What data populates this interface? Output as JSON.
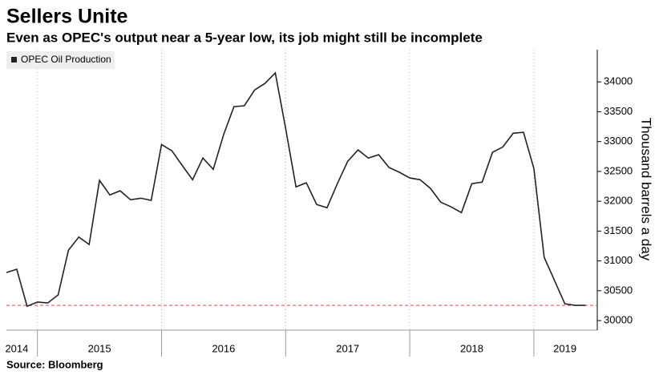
{
  "chart_data": {
    "type": "line",
    "title": "Sellers Unite",
    "subtitle": "Even as OPEC's output near a 5-year low, its job might still be incomplete",
    "y_label": "Thousand barrels a day",
    "source": "Source: Bloomberg",
    "categories": [
      null,
      "2014",
      null,
      null,
      null,
      null,
      null,
      null,
      null,
      "2015",
      null,
      null,
      null,
      null,
      null,
      null,
      null,
      null,
      null,
      null,
      null,
      "2016",
      null,
      null,
      null,
      null,
      null,
      null,
      null,
      null,
      null,
      null,
      null,
      "2017",
      null,
      null,
      null,
      null,
      null,
      null,
      null,
      null,
      null,
      null,
      null,
      "2018",
      null,
      null,
      null,
      null,
      null,
      null,
      null,
      null,
      "2019",
      null,
      null
    ],
    "series": [
      {
        "name": "OPEC Oil Production",
        "color": "#222222",
        "values": [
          30805,
          30860,
          30240,
          30310,
          30295,
          30430,
          31180,
          31400,
          31275,
          32350,
          32105,
          32175,
          32025,
          32050,
          32015,
          32950,
          32845,
          32600,
          32360,
          32725,
          32535,
          33115,
          33585,
          33600,
          33865,
          33975,
          34150,
          33220,
          32240,
          32310,
          31945,
          31890,
          32295,
          32670,
          32860,
          32725,
          32780,
          32565,
          32485,
          32390,
          32360,
          32215,
          31985,
          31905,
          31810,
          32295,
          32320,
          32820,
          32910,
          33140,
          33155,
          32550,
          31060,
          30670,
          30280,
          30255,
          30255
        ]
      }
    ],
    "reference_line": {
      "value": 30255,
      "color": "#e8474d"
    },
    "ylim": [
      29840,
      34540
    ],
    "yticks": [
      30000,
      30500,
      31000,
      31500,
      32000,
      32500,
      33000,
      33500,
      34000
    ],
    "legend": "top-left"
  }
}
